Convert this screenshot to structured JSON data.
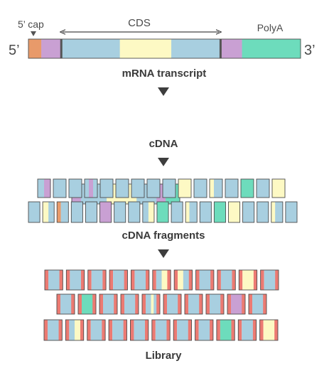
{
  "colors": {
    "cap": "#e89a6a",
    "utr": "#c9a0d3",
    "cds": "#a8cfe0",
    "highlight": "#fdf9c4",
    "polya": "#6ddcbc",
    "adapter": "#ec7a72",
    "outline": "#4d4d4d",
    "marker": "#555555",
    "arrow": "#3d3d3d"
  },
  "labels": {
    "five_prime": "5’",
    "three_prime": "3’",
    "cap": "5’ cap",
    "cds": "CDS",
    "polya": "PolyA",
    "stage_mrna": "mRNA transcript",
    "stage_cdna": "cDNA",
    "stage_fragments": "cDNA fragments",
    "stage_library": "Library"
  },
  "mrna_segments": [
    {
      "color": "cap",
      "length": 18
    },
    {
      "color": "utr",
      "length": 28
    },
    {
      "color": "cds",
      "length": 82
    },
    {
      "color": "highlight",
      "length": 72
    },
    {
      "color": "cds",
      "length": 69
    },
    {
      "color": "utr",
      "length": 30
    },
    {
      "color": "polya",
      "length": 82
    }
  ],
  "cdna_segments": [
    {
      "color": "utr",
      "length": 22
    },
    {
      "color": "cds",
      "length": 62
    },
    {
      "color": "highlight",
      "length": 72
    },
    {
      "color": "cds",
      "length": 48
    },
    {
      "color": "utr",
      "length": 22
    },
    {
      "color": "polya",
      "length": 34
    }
  ],
  "fragment_rows": [
    [
      [
        [
          "cds",
          1
        ],
        [
          "utr",
          1
        ]
      ],
      [
        [
          "cds",
          1
        ]
      ],
      [
        [
          "cds",
          1
        ]
      ],
      [
        [
          "cds",
          1
        ],
        [
          "utr",
          1
        ],
        [
          "cds",
          1
        ]
      ],
      [
        [
          "cds",
          1
        ]
      ],
      [
        [
          "cds",
          1
        ]
      ],
      [
        [
          "cds",
          1
        ]
      ],
      [
        [
          "cds",
          1
        ]
      ],
      [
        [
          "cds",
          1
        ]
      ],
      [
        [
          "highlight",
          1
        ]
      ],
      [
        [
          "cds",
          1
        ]
      ],
      [
        [
          "highlight",
          1
        ],
        [
          "cds",
          2
        ]
      ],
      [
        [
          "cds",
          1
        ]
      ],
      [
        [
          "polya",
          1
        ]
      ],
      [
        [
          "cds",
          1
        ]
      ],
      [
        [
          "highlight",
          1
        ]
      ]
    ],
    [
      [
        [
          "cds",
          1
        ]
      ],
      [
        [
          "highlight",
          1
        ],
        [
          "cds",
          1
        ]
      ],
      [
        [
          "cap",
          1
        ],
        [
          "cds",
          2
        ]
      ],
      [
        [
          "cds",
          1
        ]
      ],
      [
        [
          "cds",
          1
        ]
      ],
      [
        [
          "utr",
          1
        ]
      ],
      [
        [
          "cds",
          1
        ]
      ],
      [
        [
          "cds",
          1
        ]
      ],
      [
        [
          "cds",
          1
        ],
        [
          "highlight",
          1
        ]
      ],
      [
        [
          "polya",
          1
        ]
      ],
      [
        [
          "cds",
          1
        ]
      ],
      [
        [
          "highlight",
          1
        ],
        [
          "cds",
          2
        ]
      ],
      [
        [
          "cds",
          1
        ]
      ],
      [
        [
          "polya",
          1
        ]
      ],
      [
        [
          "highlight",
          1
        ]
      ],
      [
        [
          "cds",
          1
        ]
      ],
      [
        [
          "cds",
          1
        ]
      ],
      [
        [
          "highlight",
          1
        ],
        [
          "cds",
          2
        ]
      ],
      [
        [
          "cds",
          1
        ]
      ]
    ]
  ],
  "library_rows": [
    [
      [
        [
          "cds",
          1
        ]
      ],
      [
        [
          "cds",
          1
        ]
      ],
      [
        [
          "cds",
          1
        ]
      ],
      [
        [
          "cds",
          1
        ]
      ],
      [
        [
          "cds",
          1
        ]
      ],
      [
        [
          "cds",
          1
        ],
        [
          "highlight",
          1
        ]
      ],
      [
        [
          "highlight",
          1
        ],
        [
          "cds",
          1
        ]
      ],
      [
        [
          "cds",
          1
        ]
      ],
      [
        [
          "cds",
          1
        ]
      ],
      [
        [
          "highlight",
          1
        ]
      ],
      [
        [
          "cds",
          1
        ]
      ]
    ],
    [
      [
        [
          "cds",
          1
        ]
      ],
      [
        [
          "polya",
          1
        ]
      ],
      [
        [
          "cds",
          1
        ]
      ],
      [
        [
          "cds",
          1
        ]
      ],
      [
        [
          "cds",
          2
        ],
        [
          "highlight",
          1
        ],
        [
          "cds",
          1
        ]
      ],
      [
        [
          "cds",
          1
        ]
      ],
      [
        [
          "cds",
          1
        ]
      ],
      [
        [
          "cds",
          1
        ]
      ],
      [
        [
          "utr",
          1
        ]
      ],
      [
        [
          "cds",
          1
        ]
      ]
    ],
    [
      [
        [
          "cds",
          1
        ]
      ],
      [
        [
          "cds",
          1
        ],
        [
          "highlight",
          1
        ]
      ],
      [
        [
          "cds",
          1
        ]
      ],
      [
        [
          "cds",
          1
        ]
      ],
      [
        [
          "cds",
          1
        ]
      ],
      [
        [
          "cds",
          1
        ]
      ],
      [
        [
          "cds",
          1
        ]
      ],
      [
        [
          "cds",
          1
        ]
      ],
      [
        [
          "polya",
          1
        ]
      ],
      [
        [
          "cds",
          1
        ]
      ],
      [
        [
          "highlight",
          1
        ]
      ]
    ]
  ]
}
